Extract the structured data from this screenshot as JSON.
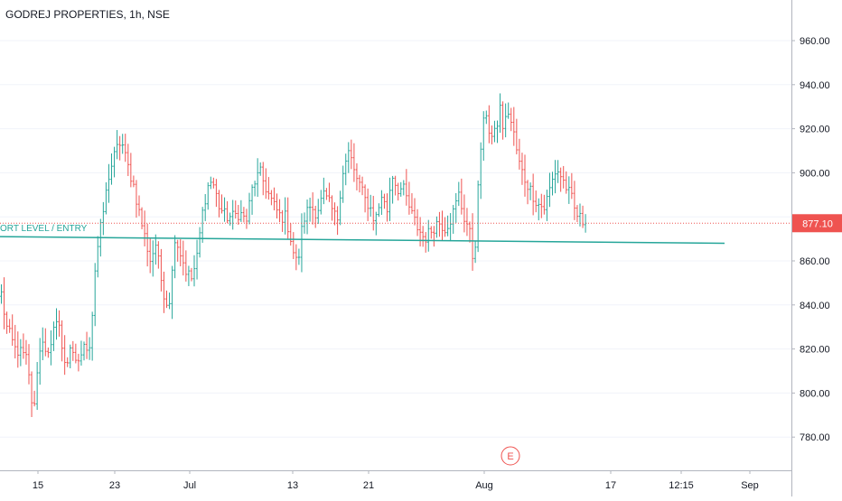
{
  "chart_data": {
    "type": "ohlc",
    "title": "GODREJ PROPERTIES, 1h, NSE",
    "y_ticks": [
      780,
      800,
      820,
      840,
      860,
      880,
      900,
      920,
      940,
      960
    ],
    "y_tick_labels": [
      "780.00",
      "800.00",
      "820.00",
      "840.00",
      "860.00",
      "",
      "900.00",
      "920.00",
      "940.00",
      "960.00"
    ],
    "x_tick_labels": [
      "15",
      "23",
      "Jul",
      "13",
      "21",
      "Aug",
      "17",
      "12:15",
      "Sep"
    ],
    "ylim": [
      770,
      975
    ],
    "last_price": 877.1,
    "last_price_label": "877.10",
    "support_label": "ORT LEVEL / ENTRY",
    "support_line": {
      "start": [
        0,
        871
      ],
      "end": [
        196,
        868
      ]
    },
    "event_marker": "E",
    "bar_count": 213,
    "keypoints": [
      [
        0,
        845
      ],
      [
        3,
        830
      ],
      [
        8,
        820
      ],
      [
        12,
        818
      ],
      [
        15,
        815
      ],
      [
        17,
        800
      ],
      [
        19,
        790
      ],
      [
        21,
        812
      ],
      [
        24,
        825
      ],
      [
        28,
        815
      ],
      [
        31,
        830
      ],
      [
        33,
        838
      ],
      [
        35,
        820
      ],
      [
        38,
        812
      ],
      [
        40,
        822
      ],
      [
        43,
        812
      ],
      [
        45,
        815
      ],
      [
        48,
        820
      ],
      [
        52,
        823
      ],
      [
        55,
        860
      ],
      [
        59,
        880
      ],
      [
        63,
        900
      ],
      [
        67,
        910
      ],
      [
        70,
        915
      ],
      [
        73,
        905
      ],
      [
        77,
        895
      ],
      [
        81,
        880
      ],
      [
        84,
        870
      ],
      [
        87,
        860
      ],
      [
        90,
        868
      ],
      [
        94,
        848
      ],
      [
        97,
        840
      ],
      [
        99,
        845
      ],
      [
        101,
        872
      ],
      [
        104,
        865
      ],
      [
        108,
        855
      ],
      [
        111,
        852
      ],
      [
        114,
        860
      ],
      [
        117,
        880
      ],
      [
        120,
        893
      ],
      [
        123,
        897
      ],
      [
        127,
        885
      ],
      [
        131,
        880
      ],
      [
        135,
        880
      ],
      [
        139,
        882
      ],
      [
        143,
        878
      ],
      [
        147,
        895
      ],
      [
        151,
        900
      ],
      [
        155,
        892
      ],
      [
        159,
        885
      ],
      [
        163,
        880
      ],
      [
        166,
        880
      ],
      [
        169,
        870
      ],
      [
        171,
        862
      ],
      [
        173,
        858
      ],
      [
        176,
        878
      ],
      [
        180,
        885
      ],
      [
        184,
        882
      ],
      [
        188,
        890
      ],
      [
        192,
        885
      ],
      [
        196,
        878
      ],
      [
        199,
        900
      ],
      [
        201,
        905
      ],
      [
        203,
        910
      ],
      [
        206,
        900
      ],
      [
        209,
        895
      ],
      [
        212,
        888
      ],
      [
        215,
        885
      ],
      [
        217,
        880
      ],
      [
        219,
        880
      ],
      [
        222,
        890
      ],
      [
        225,
        882
      ],
      [
        228,
        900
      ],
      [
        231,
        893
      ],
      [
        235,
        892
      ],
      [
        239,
        882
      ],
      [
        243,
        875
      ],
      [
        247,
        870
      ],
      [
        251,
        874
      ],
      [
        255,
        878
      ],
      [
        259,
        875
      ],
      [
        263,
        880
      ],
      [
        267,
        890
      ],
      [
        270,
        880
      ],
      [
        273,
        875
      ],
      [
        275,
        862
      ],
      [
        277,
        870
      ],
      [
        279,
        905
      ],
      [
        281,
        920
      ],
      [
        283,
        928
      ],
      [
        285,
        918
      ],
      [
        287,
        915
      ],
      [
        289,
        920
      ],
      [
        291,
        930
      ],
      [
        293,
        920
      ],
      [
        296,
        928
      ],
      [
        299,
        918
      ],
      [
        302,
        905
      ],
      [
        305,
        898
      ],
      [
        309,
        892
      ],
      [
        313,
        886
      ],
      [
        317,
        884
      ],
      [
        321,
        895
      ],
      [
        324,
        902
      ],
      [
        327,
        898
      ],
      [
        330,
        893
      ],
      [
        333,
        888
      ],
      [
        335,
        882
      ],
      [
        337,
        880
      ],
      [
        339,
        878
      ],
      [
        341,
        877.1
      ]
    ]
  }
}
